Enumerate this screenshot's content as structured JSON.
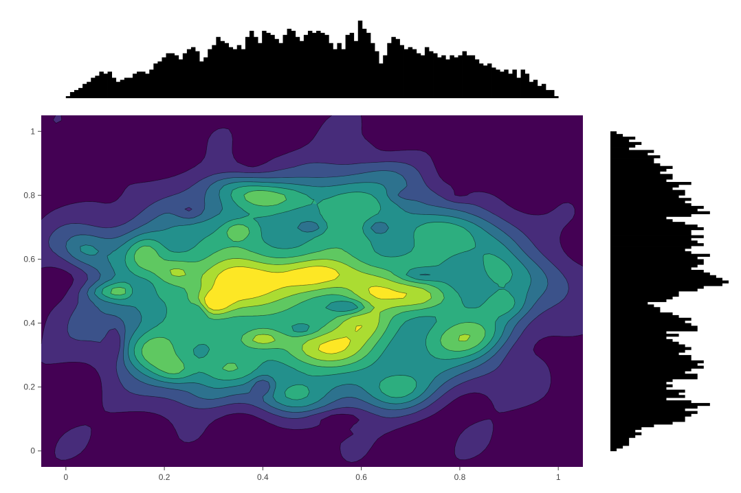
{
  "chart_data": {
    "type": "contour",
    "title": "",
    "xlabel": "",
    "ylabel": "",
    "xlim": [
      -0.05,
      1.05
    ],
    "ylim": [
      -0.05,
      1.05
    ],
    "x_ticks": [
      0,
      0.2,
      0.4,
      0.6,
      0.8,
      1
    ],
    "x_tick_labels": [
      "0",
      "0.2",
      "0.4",
      "0.6",
      "0.8",
      "1"
    ],
    "y_ticks": [
      0,
      0.2,
      0.4,
      0.6,
      0.8,
      1
    ],
    "y_tick_labels": [
      "0",
      "0.2",
      "0.4",
      "0.6",
      "0.8",
      "1"
    ],
    "colorscale": "Viridis",
    "contour_levels": 8,
    "background_color": "#440154",
    "grid": false,
    "legend": "none",
    "density_field": {
      "blob_center": [
        0.5,
        0.5
      ],
      "blob_radius": [
        0.52,
        0.4
      ],
      "peaks": [
        {
          "x": 0.35,
          "y": 0.52,
          "amp": 0.55,
          "sx": 0.06,
          "sy": 0.06
        },
        {
          "x": 0.3,
          "y": 0.46,
          "amp": 0.35,
          "sx": 0.025,
          "sy": 0.025
        },
        {
          "x": 0.52,
          "y": 0.55,
          "amp": 0.45,
          "sx": 0.07,
          "sy": 0.04
        },
        {
          "x": 0.62,
          "y": 0.5,
          "amp": 0.3,
          "sx": 0.04,
          "sy": 0.04
        },
        {
          "x": 0.1,
          "y": 0.5,
          "amp": 0.5,
          "sx": 0.05,
          "sy": 0.02
        },
        {
          "x": 0.17,
          "y": 0.3,
          "amp": 0.5,
          "sx": 0.04,
          "sy": 0.05
        },
        {
          "x": 0.4,
          "y": 0.8,
          "amp": 0.4,
          "sx": 0.06,
          "sy": 0.03
        },
        {
          "x": 0.33,
          "y": 0.84,
          "amp": 0.35,
          "sx": 0.05,
          "sy": 0.03
        },
        {
          "x": 0.84,
          "y": 0.35,
          "amp": 0.45,
          "sx": 0.06,
          "sy": 0.04
        },
        {
          "x": 0.52,
          "y": 0.32,
          "amp": 0.4,
          "sx": 0.06,
          "sy": 0.04
        },
        {
          "x": 0.45,
          "y": 0.15,
          "amp": 0.45,
          "sx": 0.06,
          "sy": 0.04
        },
        {
          "x": 0.68,
          "y": 0.18,
          "amp": 0.35,
          "sx": 0.05,
          "sy": 0.04
        },
        {
          "x": 0.22,
          "y": 0.56,
          "amp": 0.3,
          "sx": 0.03,
          "sy": 0.03
        },
        {
          "x": 0.72,
          "y": 0.48,
          "amp": 0.3,
          "sx": 0.05,
          "sy": 0.03
        },
        {
          "x": 0.88,
          "y": 0.6,
          "amp": 0.25,
          "sx": 0.04,
          "sy": 0.05
        },
        {
          "x": 0.75,
          "y": 0.7,
          "amp": 0.25,
          "sx": 0.05,
          "sy": 0.04
        },
        {
          "x": 0.6,
          "y": 0.4,
          "amp": 0.3,
          "sx": 0.04,
          "sy": 0.04
        },
        {
          "x": 0.22,
          "y": 0.25,
          "amp": 0.35,
          "sx": 0.03,
          "sy": 0.03
        },
        {
          "x": 0.3,
          "y": 0.15,
          "amp": 0.25,
          "sx": 0.04,
          "sy": 0.04
        },
        {
          "x": 0.9,
          "y": 0.45,
          "amp": 0.25,
          "sx": 0.03,
          "sy": 0.03
        },
        {
          "x": 0.03,
          "y": 0.63,
          "amp": 0.3,
          "sx": 0.03,
          "sy": 0.04
        },
        {
          "x": 0.16,
          "y": 0.62,
          "amp": 0.3,
          "sx": 0.025,
          "sy": 0.04
        },
        {
          "x": 0.58,
          "y": 0.8,
          "amp": 0.2,
          "sx": 0.05,
          "sy": 0.05
        },
        {
          "x": 0.45,
          "y": 0.93,
          "amp": 0.2,
          "sx": 0.04,
          "sy": 0.02
        },
        {
          "x": 0.6,
          "y": 0.95,
          "amp": 0.25,
          "sx": 0.02,
          "sy": 0.02
        },
        {
          "x": 0.35,
          "y": 0.69,
          "amp": 0.25,
          "sx": 0.02,
          "sy": 0.02
        },
        {
          "x": 0.4,
          "y": 0.35,
          "amp": 0.3,
          "sx": 0.03,
          "sy": 0.02
        },
        {
          "x": 0.33,
          "y": 0.25,
          "amp": 0.2,
          "sx": 0.04,
          "sy": 0.03
        },
        {
          "x": 0.66,
          "y": 0.88,
          "amp": 0.15,
          "sx": 0.05,
          "sy": 0.03
        },
        {
          "x": 0.8,
          "y": 0.8,
          "amp": 0.15,
          "sx": 0.04,
          "sy": 0.03
        }
      ],
      "dips": [
        {
          "x": 0.15,
          "y": 0.5,
          "amp": 0.35,
          "sx": 0.02,
          "sy": 0.02
        },
        {
          "x": 0.4,
          "y": 0.2,
          "amp": 0.35,
          "sx": 0.015,
          "sy": 0.02
        },
        {
          "x": 0.8,
          "y": 0.8,
          "amp": 0.3,
          "sx": 0.02,
          "sy": 0.015
        },
        {
          "x": 0.58,
          "y": 0.45,
          "amp": 0.3,
          "sx": 0.025,
          "sy": 0.015
        },
        {
          "x": 0.25,
          "y": 0.75,
          "amp": 0.25,
          "sx": 0.02,
          "sy": 0.02
        },
        {
          "x": 0.1,
          "y": 0.33,
          "amp": 0.3,
          "sx": 0.012,
          "sy": 0.04
        },
        {
          "x": 0.55,
          "y": 0.1,
          "amp": 0.3,
          "sx": 0.04,
          "sy": 0.015
        },
        {
          "x": 0.5,
          "y": 0.7,
          "amp": 0.2,
          "sx": 0.02,
          "sy": 0.015
        },
        {
          "x": 0.72,
          "y": 0.55,
          "amp": 0.25,
          "sx": 0.03,
          "sy": 0.015
        },
        {
          "x": 0.27,
          "y": 0.44,
          "amp": 0.2,
          "sx": 0.012,
          "sy": 0.02
        },
        {
          "x": 0.55,
          "y": 0.05,
          "amp": 0.2,
          "sx": 0.04,
          "sy": 0.012
        },
        {
          "x": 0.63,
          "y": 0.7,
          "amp": 0.2,
          "sx": 0.02,
          "sy": 0.02
        },
        {
          "x": 0.68,
          "y": 0.8,
          "amp": 0.15,
          "sx": 0.02,
          "sy": 0.015
        },
        {
          "x": 0.38,
          "y": 0.9,
          "amp": 0.2,
          "sx": 0.02,
          "sy": 0.015
        },
        {
          "x": 0.48,
          "y": 0.38,
          "amp": 0.15,
          "sx": 0.02,
          "sy": 0.012
        }
      ]
    },
    "top_histogram": {
      "color": "#000000",
      "bin_range": [
        0,
        1
      ],
      "counts": [
        1,
        3,
        4,
        5,
        7,
        8,
        10,
        11,
        13,
        12,
        13,
        10,
        8,
        9,
        10,
        10,
        12,
        13,
        13,
        12,
        14,
        17,
        18,
        20,
        22,
        22,
        21,
        19,
        22,
        24,
        25,
        23,
        18,
        20,
        24,
        26,
        30,
        28,
        27,
        25,
        24,
        26,
        24,
        30,
        33,
        30,
        27,
        33,
        32,
        31,
        29,
        27,
        31,
        34,
        33,
        30,
        28,
        31,
        33,
        32,
        33,
        32,
        31,
        27,
        24,
        27,
        24,
        31,
        32,
        28,
        38,
        34,
        32,
        27,
        23,
        17,
        21,
        27,
        30,
        29,
        26,
        24,
        25,
        24,
        22,
        21,
        25,
        23,
        22,
        20,
        21,
        19,
        21,
        20,
        21,
        23,
        21,
        21,
        19,
        17,
        16,
        17,
        15,
        14,
        13,
        14,
        12,
        14,
        10,
        14,
        12,
        8,
        9,
        6,
        7,
        4,
        4,
        1
      ]
    },
    "right_histogram": {
      "color": "#000000",
      "orientation": "horizontal",
      "bin_range": [
        0,
        1
      ],
      "counts": [
        1,
        2,
        3,
        3,
        3,
        4,
        5,
        4,
        5,
        7,
        10,
        12,
        12,
        13,
        14,
        12,
        14,
        16,
        13,
        9,
        12,
        11,
        12,
        9,
        10,
        9,
        10,
        14,
        14,
        12,
        13,
        15,
        14,
        15,
        13,
        13,
        11,
        12,
        13,
        12,
        11,
        10,
        9,
        11,
        9,
        14,
        14,
        13,
        12,
        13,
        11,
        10,
        8,
        8,
        7,
        6,
        9,
        10,
        11,
        11,
        14,
        15,
        18,
        19,
        18,
        17,
        16,
        15,
        13,
        14,
        15,
        15,
        14,
        16,
        13,
        12,
        13,
        15,
        14,
        13,
        15,
        13,
        13,
        15,
        14,
        12,
        10,
        9,
        13,
        16,
        14,
        15,
        13,
        12,
        13,
        11,
        12,
        12,
        10,
        11,
        13,
        9,
        10,
        10,
        8,
        9,
        10,
        8,
        7,
        7,
        8,
        6,
        7,
        3,
        4,
        5,
        3,
        4,
        2,
        1
      ]
    }
  }
}
